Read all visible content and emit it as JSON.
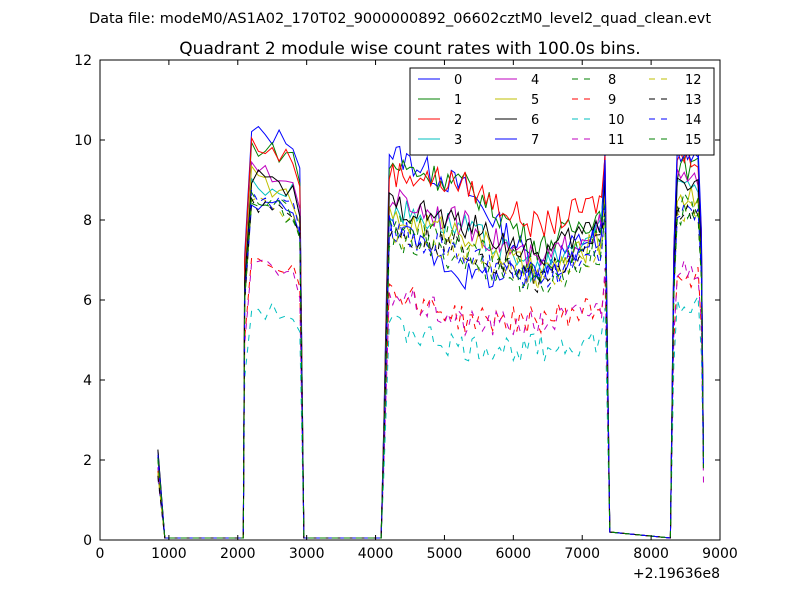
{
  "suptitle": "Data file: modeM0/AS1A02_170T02_9000000892_06602cztM0_level2_quad_clean.evt",
  "chart_data": {
    "type": "line",
    "title": "Quadrant 2 module wise count rates with 100.0s bins.",
    "xlabel": "",
    "ylabel": "",
    "x_offset_label": "+2.19636e8",
    "xlim": [
      0,
      9000
    ],
    "ylim": [
      0,
      12
    ],
    "xticks": [
      0,
      1000,
      2000,
      3000,
      4000,
      5000,
      6000,
      7000,
      8000,
      9000
    ],
    "xtick_labels": [
      "0",
      "1000",
      "2000",
      "3000",
      "4000",
      "5000",
      "6000",
      "7000",
      "8000",
      "9000"
    ],
    "yticks": [
      0,
      2,
      4,
      6,
      8,
      10,
      12
    ],
    "ytick_labels": [
      "0",
      "2",
      "4",
      "6",
      "8",
      "10",
      "12"
    ],
    "grid": false,
    "legend_placement": "top-right",
    "legend_columns": 4,
    "segments": [
      {
        "name": "seg1",
        "x": [
          840,
          940
        ]
      },
      {
        "name": "seg2",
        "x": [
          2080,
          2200,
          2300,
          2400,
          2500,
          2600,
          2700,
          2800,
          2900,
          2960
        ]
      },
      {
        "name": "seg3",
        "x": [
          4080,
          4150,
          4200,
          4250,
          4300,
          4350,
          4400,
          4450,
          4500,
          4550,
          4600,
          4650,
          4700,
          4750,
          4800,
          4850,
          4900,
          4950,
          5000,
          5050,
          5100,
          5150,
          5200,
          5250,
          5300,
          5350,
          5400,
          5450,
          5500,
          5550,
          5600,
          5650,
          5700,
          5750,
          5800,
          5850,
          5900,
          5950,
          6000,
          6050,
          6100,
          6150,
          6200,
          6250,
          6300,
          6350,
          6400,
          6450,
          6500,
          6550,
          6600,
          6650,
          6700,
          6750,
          6800,
          6850,
          6900,
          6950,
          7000,
          7050,
          7100,
          7150,
          7200,
          7250,
          7280,
          7330,
          7400
        ]
      },
      {
        "name": "seg4",
        "x": [
          8280,
          8330,
          8380,
          8430,
          8480,
          8530,
          8580,
          8630,
          8680,
          8730,
          8760
        ]
      }
    ],
    "zero_segments": [
      [
        940,
        2080
      ],
      [
        2960,
        4080
      ],
      [
        7400,
        8280
      ]
    ],
    "series": [
      {
        "name": "0",
        "color": "#0000ff",
        "dash": "solid",
        "level": [
          8.0,
          10.2,
          10.0,
          9.7,
          9.8,
          8.8,
          6.8,
          7.8,
          9.7
        ],
        "pre": 2.1
      },
      {
        "name": "1",
        "color": "#008000",
        "dash": "solid",
        "level": [
          8.0,
          9.9,
          9.6,
          9.4,
          9.3,
          8.9,
          7.3,
          8.2,
          9.3
        ],
        "pre": 2.0
      },
      {
        "name": "2",
        "color": "#ff0000",
        "dash": "solid",
        "level": [
          8.0,
          10.0,
          9.5,
          9.2,
          9.1,
          8.9,
          7.8,
          8.5,
          9.6
        ],
        "pre": 2.1
      },
      {
        "name": "3",
        "color": "#00bfbf",
        "dash": "solid",
        "level": [
          7.6,
          8.9,
          8.7,
          8.3,
          8.0,
          7.8,
          6.7,
          7.8,
          8.9
        ],
        "pre": 1.9
      },
      {
        "name": "4",
        "color": "#bf00bf",
        "dash": "solid",
        "level": [
          7.8,
          9.3,
          8.9,
          8.6,
          8.2,
          7.9,
          6.9,
          7.9,
          9.0
        ],
        "pre": 2.0
      },
      {
        "name": "5",
        "color": "#bfbf00",
        "dash": "solid",
        "level": [
          7.6,
          9.2,
          8.5,
          8.0,
          7.9,
          7.7,
          6.6,
          7.5,
          8.6
        ],
        "pre": 1.9
      },
      {
        "name": "6",
        "color": "#000000",
        "dash": "solid",
        "level": [
          7.8,
          9.2,
          8.7,
          8.4,
          8.2,
          7.9,
          7.1,
          8.0,
          9.0
        ],
        "pre": 2.0
      },
      {
        "name": "7",
        "color": "#0000ff",
        "dash": "solid",
        "level": [
          7.7,
          8.6,
          8.2,
          7.9,
          7.2,
          6.6,
          6.6,
          7.6,
          9.5
        ],
        "pre": 1.9
      },
      {
        "name": "8",
        "color": "#008000",
        "dash": "dashed",
        "level": [
          7.6,
          8.6,
          8.2,
          7.9,
          7.7,
          7.5,
          6.7,
          7.6,
          8.4
        ],
        "pre": 1.9
      },
      {
        "name": "9",
        "color": "#ff0000",
        "dash": "dashed",
        "level": [
          6.4,
          7.2,
          6.8,
          6.3,
          5.8,
          5.5,
          5.5,
          5.8,
          6.6
        ],
        "pre": 1.7
      },
      {
        "name": "10",
        "color": "#00bfbf",
        "dash": "dashed",
        "level": [
          5.3,
          5.8,
          5.6,
          5.4,
          4.9,
          4.8,
          4.8,
          5.0,
          5.8
        ],
        "pre": 1.6
      },
      {
        "name": "11",
        "color": "#bf00bf",
        "dash": "dashed",
        "level": [
          6.2,
          7.0,
          6.5,
          6.2,
          5.7,
          5.4,
          5.4,
          5.8,
          6.8
        ],
        "pre": 1.7
      },
      {
        "name": "12",
        "color": "#bfbf00",
        "dash": "dashed",
        "level": [
          7.3,
          8.5,
          8.1,
          7.7,
          7.6,
          7.2,
          6.5,
          7.3,
          8.2
        ],
        "pre": 1.9
      },
      {
        "name": "13",
        "color": "#000000",
        "dash": "dashed",
        "level": [
          7.4,
          8.5,
          8.2,
          7.7,
          7.6,
          7.3,
          6.5,
          7.4,
          8.2
        ],
        "pre": 1.9
      },
      {
        "name": "14",
        "color": "#0000ff",
        "dash": "dashed",
        "level": [
          7.5,
          8.7,
          8.3,
          7.8,
          7.6,
          7.1,
          6.4,
          7.3,
          8.3
        ],
        "pre": 1.9
      },
      {
        "name": "15",
        "color": "#008000",
        "dash": "dashed",
        "level": [
          7.4,
          8.6,
          8.1,
          7.6,
          7.3,
          7.0,
          6.3,
          7.2,
          8.1
        ],
        "pre": 1.9
      }
    ]
  }
}
